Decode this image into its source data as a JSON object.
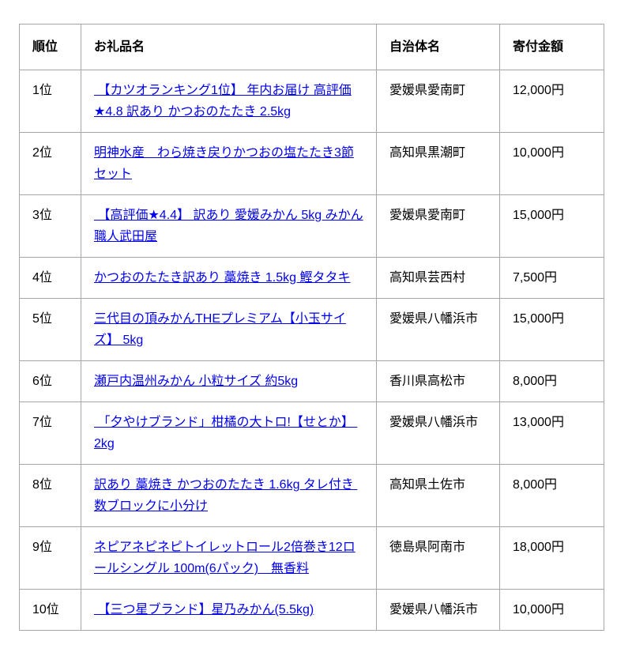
{
  "colors": {
    "link": "#0000ee",
    "border": "#a6a6a6",
    "text": "#000000",
    "background": "#ffffff"
  },
  "table": {
    "headers": {
      "rank": "順位",
      "gift": "お礼品名",
      "municipality": "自治体名",
      "amount": "寄付金額"
    },
    "rows": [
      {
        "rank": "1位",
        "gift": " 【カツオランキング1位】 年内お届け 高評価★4.8 訳あり かつおのたたき 2.5kg",
        "municipality": "愛媛県愛南町",
        "amount": "12,000円"
      },
      {
        "rank": "2位",
        "gift": "明神水産　わら焼き戻りかつおの塩たたき3節セット",
        "municipality": "高知県黒潮町",
        "amount": "10,000円"
      },
      {
        "rank": "3位",
        "gift": " 【高評価★4.4】 訳あり 愛媛みかん 5kg みかん職人武田屋",
        "municipality": "愛媛県愛南町",
        "amount": "15,000円"
      },
      {
        "rank": "4位",
        "gift": "かつおのたたき訳あり 藁焼き 1.5kg 鰹タタキ",
        "municipality": "高知県芸西村",
        "amount": "7,500円"
      },
      {
        "rank": "5位",
        "gift": "三代目の頂みかんTHEプレミアム【小玉サイズ】 5kg",
        "municipality": "愛媛県八幡浜市",
        "amount": "15,000円"
      },
      {
        "rank": "6位",
        "gift": "瀬戸内温州みかん 小粒サイズ 約5kg",
        "municipality": "香川県高松市",
        "amount": "8,000円"
      },
      {
        "rank": "7位",
        "gift": " 「夕やけブランド」柑橘の大トロ!【せとか】 2kg",
        "municipality": "愛媛県八幡浜市",
        "amount": "13,000円"
      },
      {
        "rank": "8位",
        "gift": "訳あり 藁焼き かつおのたたき 1.6kg タレ付き 数ブロックに小分け",
        "municipality": "高知県土佐市",
        "amount": "8,000円"
      },
      {
        "rank": "9位",
        "gift": "ネピアネピネピトイレットロール2倍巻き12ロールシングル 100m(6パック)　無香料",
        "municipality": "徳島県阿南市",
        "amount": "18,000円"
      },
      {
        "rank": "10位",
        "gift": " 【三つ星ブランド】星乃みかん(5.5kg)",
        "municipality": "愛媛県八幡浜市",
        "amount": "10,000円"
      }
    ]
  }
}
